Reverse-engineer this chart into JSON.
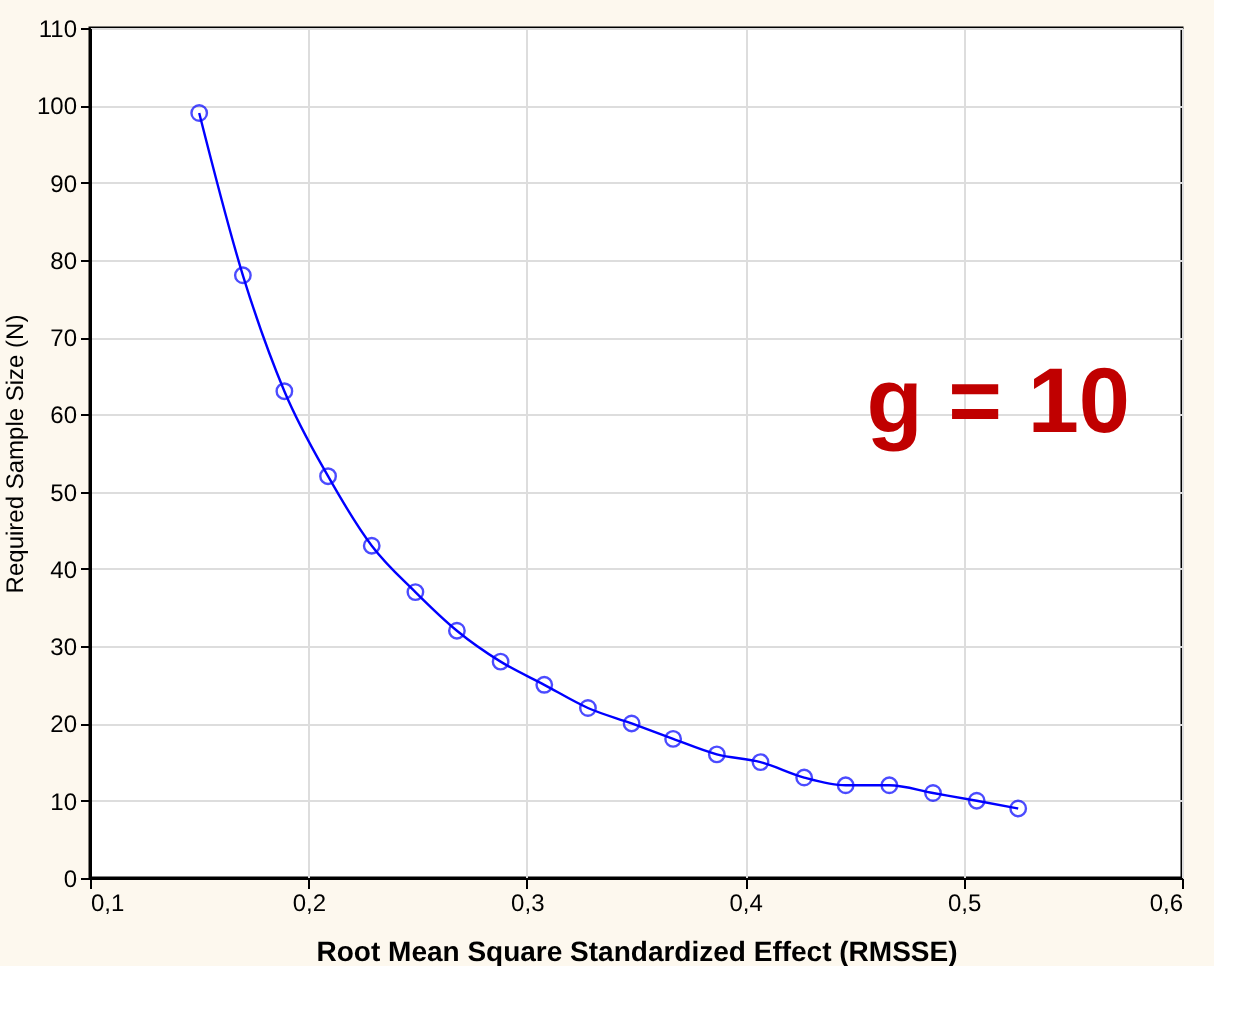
{
  "chart_data": {
    "type": "line",
    "xlabel": "Root Mean Square Standardized Effect (RMSSE)",
    "ylabel": "Required Sample Size (N)",
    "x": [
      0.15,
      0.17,
      0.189,
      0.209,
      0.229,
      0.249,
      0.268,
      0.288,
      0.308,
      0.328,
      0.348,
      0.367,
      0.387,
      0.407,
      0.427,
      0.446,
      0.466,
      0.486,
      0.506,
      0.525
    ],
    "series": [
      {
        "color": "#0000ff",
        "values": [
          99,
          78,
          63,
          52,
          43,
          37,
          32,
          28,
          25,
          22,
          20,
          18,
          16,
          15,
          13,
          12,
          12,
          11,
          10,
          9
        ]
      }
    ],
    "xlim": [
      0.1,
      0.6
    ],
    "xticks": [
      {
        "value": 0.1,
        "label": "0,1"
      },
      {
        "value": 0.2,
        "label": "0,2"
      },
      {
        "value": 0.3,
        "label": "0,3"
      },
      {
        "value": 0.4,
        "label": "0,4"
      },
      {
        "value": 0.5,
        "label": "0,5"
      },
      {
        "value": 0.6,
        "label": "0,6"
      }
    ],
    "ylim": [
      0,
      110
    ],
    "yticks": [
      0,
      10,
      20,
      30,
      40,
      50,
      60,
      70,
      80,
      90,
      100,
      110
    ],
    "annotations": [
      "g = 10"
    ],
    "grid": true,
    "marker": "circle",
    "line_style": "solid"
  }
}
